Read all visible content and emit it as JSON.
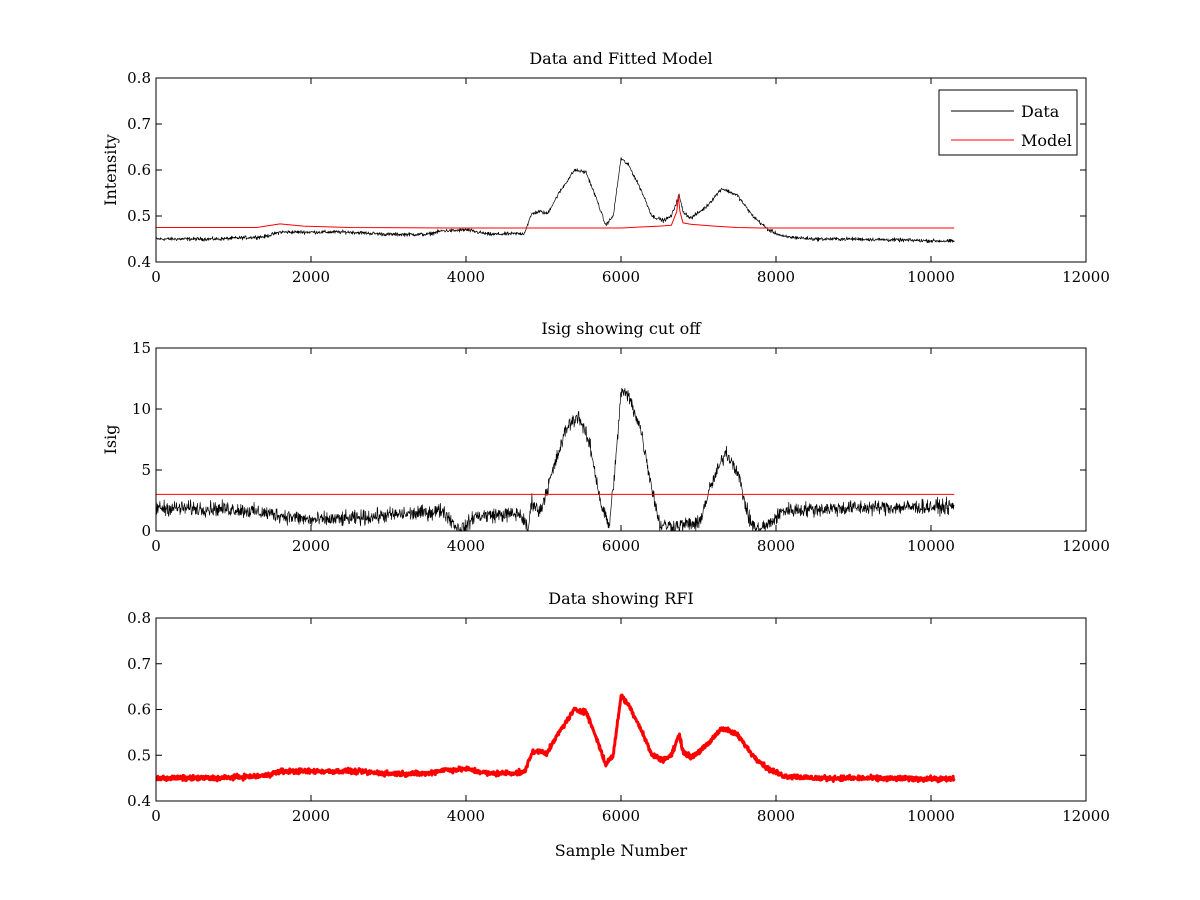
{
  "chart_data": [
    {
      "type": "line",
      "title": "Data and Fitted Model",
      "xlabel": "",
      "ylabel": "Intensity",
      "xlim": [
        0,
        12000
      ],
      "ylim": [
        0.4,
        0.8
      ],
      "xticks": [
        "0",
        "2000",
        "4000",
        "6000",
        "8000",
        "10000",
        "12000"
      ],
      "yticks": [
        "0.4",
        "0.5",
        "0.6",
        "0.7",
        "0.8"
      ],
      "legend": {
        "position": "top-right",
        "entries": [
          "Data",
          "Model"
        ]
      },
      "series": [
        {
          "name": "Data",
          "color": "#000000",
          "noise": 0.006,
          "x": [
            0,
            800,
            1400,
            1600,
            2000,
            2500,
            3000,
            3500,
            3700,
            3850,
            4000,
            4300,
            4750,
            4850,
            4950,
            5050,
            5200,
            5400,
            5550,
            5700,
            5800,
            5900,
            6000,
            6100,
            6250,
            6400,
            6550,
            6650,
            6750,
            6800,
            6900,
            7100,
            7300,
            7500,
            7700,
            7900,
            8100,
            8500,
            9000,
            10300
          ],
          "y": [
            0.45,
            0.45,
            0.455,
            0.465,
            0.465,
            0.465,
            0.46,
            0.46,
            0.468,
            0.468,
            0.47,
            0.46,
            0.462,
            0.505,
            0.51,
            0.505,
            0.55,
            0.6,
            0.595,
            0.53,
            0.48,
            0.5,
            0.625,
            0.61,
            0.56,
            0.5,
            0.49,
            0.5,
            0.545,
            0.51,
            0.495,
            0.52,
            0.56,
            0.545,
            0.5,
            0.47,
            0.455,
            0.45,
            0.45,
            0.445
          ]
        },
        {
          "name": "Model",
          "color": "#ff0000",
          "noise": 0,
          "x": [
            0,
            1300,
            1600,
            1900,
            2500,
            3800,
            4800,
            6000,
            6500,
            6650,
            6720,
            6740,
            6760,
            6800,
            6900,
            7200,
            7500,
            7800,
            8000,
            10300
          ],
          "y": [
            0.475,
            0.475,
            0.483,
            0.478,
            0.475,
            0.474,
            0.474,
            0.474,
            0.478,
            0.48,
            0.51,
            0.545,
            0.51,
            0.485,
            0.482,
            0.478,
            0.475,
            0.474,
            0.474,
            0.474
          ]
        }
      ]
    },
    {
      "type": "line",
      "title": "Isig showing cut off",
      "xlabel": "",
      "ylabel": "Isig",
      "xlim": [
        0,
        12000
      ],
      "ylim": [
        0,
        15
      ],
      "xticks": [
        "0",
        "2000",
        "4000",
        "6000",
        "8000",
        "10000",
        "12000"
      ],
      "yticks": [
        "0",
        "5",
        "10",
        "15"
      ],
      "series": [
        {
          "color": "#000000",
          "noise": 0.9,
          "x": [
            0,
            1000,
            1500,
            2000,
            2500,
            3000,
            3500,
            3700,
            3900,
            4000,
            4100,
            4300,
            4700,
            4800,
            4850,
            4950,
            5100,
            5300,
            5450,
            5600,
            5750,
            5850,
            5950,
            6000,
            6100,
            6250,
            6400,
            6500,
            6700,
            6900,
            7000,
            7150,
            7350,
            7500,
            7650,
            7750,
            7900,
            8100,
            9000,
            10300
          ],
          "y": [
            1.9,
            1.8,
            1.4,
            0.9,
            1.0,
            1.3,
            1.5,
            1.7,
            0.2,
            0.3,
            1.2,
            1.3,
            1.4,
            0.1,
            2.5,
            1.5,
            4.5,
            8.5,
            9.5,
            7.0,
            2.0,
            0.4,
            7.0,
            11.5,
            11.0,
            8.5,
            3.5,
            0.5,
            0.4,
            0.6,
            0.5,
            3.5,
            6.5,
            5.0,
            1.0,
            0.1,
            0.5,
            1.7,
            1.9,
            2.0
          ]
        },
        {
          "color": "#ff0000",
          "noise": 0,
          "x": [
            0,
            10300
          ],
          "y": [
            3,
            3
          ]
        }
      ]
    },
    {
      "type": "line",
      "title": "Data showing RFI",
      "xlabel": "Sample Number",
      "ylabel": "",
      "xlim": [
        0,
        12000
      ],
      "ylim": [
        0.4,
        0.8
      ],
      "xticks": [
        "0",
        "2000",
        "4000",
        "6000",
        "8000",
        "10000",
        "12000"
      ],
      "yticks": [
        "0.4",
        "0.5",
        "0.6",
        "0.7",
        "0.8"
      ],
      "series": [
        {
          "color": "#ff0000",
          "noise": 0.008,
          "width": 3,
          "x": [
            0,
            800,
            1400,
            1600,
            2000,
            2500,
            3000,
            3500,
            3700,
            3850,
            4000,
            4300,
            4750,
            4850,
            4950,
            5050,
            5200,
            5400,
            5550,
            5700,
            5800,
            5900,
            6000,
            6100,
            6250,
            6400,
            6550,
            6650,
            6750,
            6800,
            6900,
            7100,
            7300,
            7500,
            7700,
            7900,
            8100,
            8500,
            9000,
            10300
          ],
          "y": [
            0.45,
            0.45,
            0.455,
            0.465,
            0.465,
            0.465,
            0.46,
            0.46,
            0.468,
            0.468,
            0.47,
            0.46,
            0.462,
            0.505,
            0.51,
            0.505,
            0.55,
            0.6,
            0.595,
            0.53,
            0.48,
            0.5,
            0.63,
            0.61,
            0.56,
            0.5,
            0.49,
            0.5,
            0.545,
            0.51,
            0.495,
            0.52,
            0.56,
            0.545,
            0.5,
            0.47,
            0.455,
            0.45,
            0.45,
            0.448
          ]
        }
      ]
    }
  ]
}
